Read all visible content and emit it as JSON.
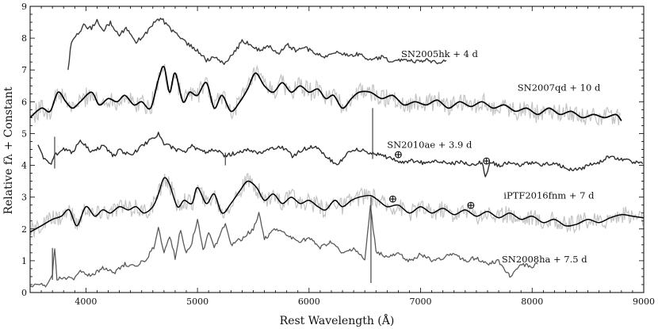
{
  "chart_data": {
    "type": "line",
    "title": "",
    "xlabel": "Rest Wavelength (Å)",
    "ylabel": "Relative fλ + Constant",
    "xlim": [
      3500,
      9000
    ],
    "ylim": [
      0,
      9
    ],
    "xticks": [
      4000,
      5000,
      6000,
      7000,
      8000,
      9000
    ],
    "yticks": [
      0,
      1,
      2,
      3,
      4,
      5,
      6,
      7,
      8,
      9
    ],
    "grid": false,
    "legend": "none",
    "telluric_symbol": "⊕",
    "telluric_markers": [
      {
        "x": 6800,
        "y": 4.35
      },
      {
        "x": 7590,
        "y": 4.15
      },
      {
        "x": 6750,
        "y": 2.95
      },
      {
        "x": 7450,
        "y": 2.75
      }
    ],
    "series": [
      {
        "name": "SN2005hk",
        "label": "SN2005hk + 4 d",
        "label_pos": [
          7170,
          7.4
        ],
        "color": "#3a3a3a",
        "width": 1.4,
        "x": [
          3840,
          3870,
          3920,
          3980,
          4050,
          4100,
          4150,
          4220,
          4300,
          4360,
          4450,
          4500,
          4560,
          4620,
          4680,
          4730,
          4780,
          4850,
          4920,
          5000,
          5080,
          5150,
          5250,
          5320,
          5400,
          5480,
          5560,
          5640,
          5720,
          5800,
          5880,
          5960,
          6050,
          6150,
          6250,
          6350,
          6450,
          6550,
          6650,
          6750,
          6850,
          6950,
          7050,
          7150,
          7230
        ],
        "y": [
          7.0,
          7.9,
          8.1,
          8.4,
          8.3,
          8.6,
          8.2,
          8.5,
          8.1,
          8.3,
          7.9,
          8.0,
          8.25,
          8.5,
          8.6,
          8.4,
          8.2,
          8.0,
          7.8,
          7.6,
          7.3,
          7.4,
          7.2,
          7.5,
          7.9,
          7.8,
          7.6,
          7.75,
          7.5,
          7.8,
          7.6,
          7.7,
          7.55,
          7.4,
          7.6,
          7.45,
          7.5,
          7.3,
          7.4,
          7.25,
          7.35,
          7.25,
          7.3,
          7.25,
          7.3
        ]
      },
      {
        "name": "SN2007qd",
        "label": "SN2007qd + 10 d",
        "label_pos": [
          8240,
          6.35
        ],
        "color": "#000000",
        "width": 1.7,
        "noisy": true,
        "noise_amp": 0.3,
        "x": [
          3500,
          3600,
          3680,
          3750,
          3820,
          3880,
          3950,
          4050,
          4120,
          4200,
          4280,
          4350,
          4430,
          4500,
          4580,
          4650,
          4700,
          4750,
          4800,
          4870,
          4930,
          5000,
          5080,
          5150,
          5220,
          5300,
          5380,
          5450,
          5520,
          5600,
          5680,
          5760,
          5840,
          5920,
          6000,
          6080,
          6150,
          6220,
          6300,
          6380,
          6450,
          6550,
          6650,
          6750,
          6850,
          6950,
          7050,
          7150,
          7250,
          7350,
          7450,
          7550,
          7650,
          7750,
          7850,
          7950,
          8050,
          8150,
          8250,
          8350,
          8450,
          8550,
          8650,
          8750,
          8800
        ],
        "y": [
          5.5,
          5.8,
          5.7,
          6.3,
          6.0,
          5.8,
          6.0,
          6.3,
          5.9,
          6.1,
          6.0,
          6.2,
          5.9,
          6.0,
          5.8,
          6.7,
          7.1,
          6.3,
          6.9,
          6.0,
          6.3,
          6.2,
          6.6,
          5.8,
          6.2,
          5.7,
          6.0,
          6.4,
          6.9,
          6.5,
          6.3,
          6.6,
          6.3,
          6.5,
          6.3,
          6.4,
          6.1,
          6.2,
          5.8,
          6.1,
          6.3,
          6.3,
          6.1,
          6.2,
          5.9,
          6.0,
          5.9,
          6.05,
          5.8,
          6.0,
          5.85,
          6.0,
          5.8,
          5.9,
          5.7,
          5.8,
          5.6,
          5.8,
          5.6,
          5.7,
          5.5,
          5.6,
          5.5,
          5.6,
          5.4
        ]
      },
      {
        "name": "SN2010ae",
        "label": "SN2010ae + 3.9 d",
        "label_pos": [
          7080,
          4.55
        ],
        "color": "#2e2e2e",
        "width": 1.4,
        "x": [
          3570,
          3620,
          3680,
          3720,
          3800,
          3880,
          3950,
          4050,
          4150,
          4250,
          4300,
          4400,
          4500,
          4580,
          4650,
          4700,
          4800,
          4880,
          4950,
          5050,
          5150,
          5250,
          5350,
          5450,
          5550,
          5650,
          5750,
          5850,
          5950,
          6050,
          6150,
          6250,
          6350,
          6450,
          6550,
          6650,
          6750,
          6850,
          6950,
          7050,
          7150,
          7250,
          7350,
          7450,
          7550,
          7580,
          7620,
          7700,
          7800,
          7900,
          8000,
          8100,
          8200,
          8300,
          8400,
          8500,
          8600,
          8700,
          8800,
          8900,
          8990
        ],
        "y": [
          4.7,
          4.2,
          4.0,
          4.3,
          4.5,
          4.4,
          4.8,
          4.4,
          4.6,
          4.3,
          4.5,
          4.3,
          4.6,
          4.8,
          5.0,
          4.7,
          4.5,
          4.4,
          4.6,
          4.4,
          4.5,
          4.3,
          4.4,
          4.5,
          4.4,
          4.5,
          4.6,
          4.3,
          4.5,
          4.6,
          4.3,
          4.0,
          4.4,
          4.5,
          4.4,
          4.3,
          4.2,
          4.1,
          4.15,
          4.05,
          4.15,
          4.05,
          4.1,
          4.0,
          4.1,
          3.6,
          4.1,
          4.0,
          4.1,
          4.0,
          4.1,
          4.0,
          4.1,
          3.9,
          3.85,
          4.0,
          4.1,
          4.3,
          4.2,
          4.1,
          4.05
        ]
      },
      {
        "name": "iPTF2016fnm",
        "label": "iPTF2016fnm + 7 d",
        "label_pos": [
          8150,
          2.95
        ],
        "color": "#000000",
        "width": 1.5,
        "noisy": true,
        "noise_amp": 0.28,
        "x": [
          3500,
          3600,
          3700,
          3780,
          3850,
          3920,
          4000,
          4080,
          4150,
          4220,
          4300,
          4380,
          4450,
          4520,
          4600,
          4650,
          4700,
          4750,
          4820,
          4880,
          4950,
          5000,
          5080,
          5150,
          5220,
          5300,
          5380,
          5450,
          5530,
          5600,
          5680,
          5760,
          5840,
          5920,
          6000,
          6080,
          6150,
          6230,
          6300,
          6380,
          6450,
          6550,
          6620,
          6700,
          6800,
          6900,
          7000,
          7100,
          7200,
          7300,
          7400,
          7500,
          7600,
          7700,
          7800,
          7900,
          8000,
          8100,
          8200,
          8300,
          8400,
          8500,
          8600,
          8700,
          8800,
          8900,
          9000
        ],
        "y": [
          1.9,
          2.1,
          2.3,
          2.4,
          2.6,
          2.1,
          2.7,
          2.4,
          2.6,
          2.5,
          2.7,
          2.6,
          2.7,
          2.5,
          2.7,
          3.1,
          3.6,
          3.4,
          2.7,
          2.9,
          2.8,
          3.3,
          2.8,
          3.1,
          2.5,
          2.8,
          3.2,
          3.5,
          3.3,
          2.9,
          3.1,
          2.8,
          3.0,
          2.8,
          2.9,
          2.7,
          2.6,
          2.9,
          2.7,
          2.9,
          3.0,
          3.05,
          2.9,
          2.7,
          2.75,
          2.5,
          2.7,
          2.5,
          2.65,
          2.45,
          2.6,
          2.4,
          2.55,
          2.35,
          2.5,
          2.3,
          2.4,
          2.2,
          2.3,
          2.1,
          2.15,
          2.3,
          2.2,
          2.35,
          2.45,
          2.4,
          2.35
        ]
      },
      {
        "name": "SN2008ha",
        "label": "SN2008ha + 7.5 d",
        "label_pos": [
          8110,
          0.95
        ],
        "color": "#5a5a5a",
        "width": 1.3,
        "x": [
          3500,
          3580,
          3650,
          3700,
          3720,
          3740,
          3800,
          3880,
          3950,
          4050,
          4150,
          4250,
          4350,
          4450,
          4550,
          4620,
          4650,
          4700,
          4750,
          4800,
          4850,
          4900,
          4950,
          5000,
          5050,
          5100,
          5150,
          5200,
          5250,
          5300,
          5400,
          5500,
          5550,
          5600,
          5700,
          5800,
          5900,
          6000,
          6100,
          6200,
          6300,
          6400,
          6500,
          6550,
          6600,
          6700,
          6800,
          6900,
          7000,
          7100,
          7200,
          7300,
          7400,
          7500,
          7600,
          7700,
          7800,
          7900,
          8000,
          8050
        ],
        "y": [
          0.2,
          0.3,
          0.2,
          0.6,
          1.4,
          0.4,
          0.5,
          0.4,
          0.7,
          0.5,
          0.8,
          0.6,
          0.9,
          0.8,
          1.1,
          1.5,
          2.0,
          1.3,
          1.8,
          1.1,
          2.0,
          1.2,
          1.6,
          2.3,
          1.3,
          1.9,
          1.4,
          1.8,
          2.2,
          1.5,
          1.7,
          2.0,
          2.5,
          1.7,
          2.0,
          1.8,
          1.6,
          1.7,
          1.4,
          1.6,
          1.2,
          1.4,
          1.0,
          2.7,
          1.3,
          1.1,
          1.2,
          1.0,
          1.2,
          1.0,
          1.1,
          1.2,
          1.0,
          1.1,
          0.9,
          1.0,
          0.5,
          0.9,
          0.8,
          0.9
        ]
      }
    ]
  }
}
